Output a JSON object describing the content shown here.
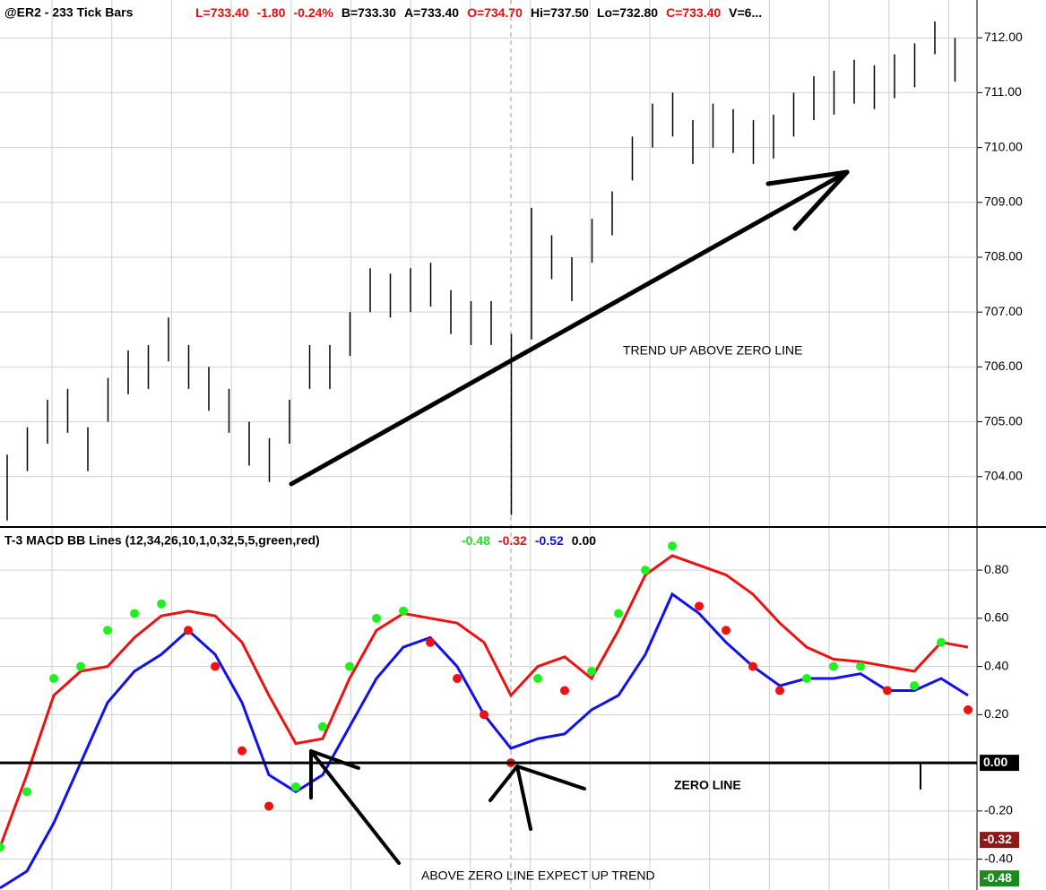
{
  "chart_data": [
    {
      "type": "range_bars",
      "title": "@ER2 - 233 Tick Bars",
      "quote": [
        {
          "label": "L=733.40",
          "color": "#e01010"
        },
        {
          "label": "-1.80",
          "color": "#e01010"
        },
        {
          "label": "-0.24%",
          "color": "#e01010"
        },
        {
          "label": "B=733.30",
          "color": "#000000"
        },
        {
          "label": "A=733.40",
          "color": "#000000"
        },
        {
          "label": "O=734.70",
          "color": "#e01010"
        },
        {
          "label": "Hi=737.50",
          "color": "#000000"
        },
        {
          "label": "Lo=732.80",
          "color": "#000000"
        },
        {
          "label": "C=733.40",
          "color": "#e01010"
        },
        {
          "label": "V=6...",
          "color": "#000000"
        }
      ],
      "annotation": "TREND UP ABOVE ZERO LINE",
      "color": "#000000",
      "series": [
        {
          "name": "High",
          "values": [
            704.4,
            704.9,
            705.4,
            705.6,
            704.9,
            705.8,
            706.3,
            706.4,
            706.9,
            706.4,
            706.0,
            705.6,
            705.0,
            704.7,
            705.4,
            706.4,
            706.4,
            707.0,
            707.8,
            707.7,
            707.8,
            707.9,
            707.4,
            707.2,
            707.2,
            706.6,
            708.9,
            708.4,
            708.0,
            708.7,
            709.2,
            710.2,
            710.8,
            711.0,
            710.5,
            710.8,
            710.7,
            710.5,
            710.6,
            711.0,
            711.3,
            711.4,
            711.6,
            711.5,
            711.7,
            711.9,
            712.3,
            712.0
          ]
        },
        {
          "name": "Low",
          "values": [
            703.2,
            704.1,
            704.6,
            704.8,
            704.1,
            705.0,
            705.5,
            705.6,
            706.1,
            705.6,
            705.2,
            704.8,
            704.2,
            703.9,
            704.6,
            705.6,
            705.6,
            706.2,
            707.0,
            706.9,
            707.0,
            707.1,
            706.6,
            706.4,
            706.4,
            703.3,
            706.5,
            707.6,
            707.2,
            707.9,
            708.4,
            709.4,
            710.0,
            710.2,
            709.7,
            710.0,
            709.9,
            709.7,
            709.8,
            710.2,
            710.5,
            710.6,
            710.8,
            710.7,
            710.9,
            711.1,
            711.7,
            711.2
          ]
        }
      ],
      "ylim": [
        703.13,
        712.69
      ],
      "yticks": [
        {
          "value": 704,
          "label": "704.00"
        },
        {
          "value": 705,
          "label": "705.00"
        },
        {
          "value": 706,
          "label": "706.00"
        },
        {
          "value": 707,
          "label": "707.00"
        },
        {
          "value": 708,
          "label": "708.00"
        },
        {
          "value": 709,
          "label": "709.00"
        },
        {
          "value": 710,
          "label": "710.00"
        },
        {
          "value": 711,
          "label": "711.00"
        },
        {
          "value": 712,
          "label": "712.00"
        }
      ],
      "grid": true
    },
    {
      "type": "macd",
      "title": "T-3 MACD BB Lines  (12,34,26,10,1,0,32,5,5,green,red)",
      "readouts": [
        {
          "label": "-0.48",
          "color": "#22dd22"
        },
        {
          "label": "-0.32",
          "color": "#e01010"
        },
        {
          "label": "-0.52",
          "color": "#1010e0"
        },
        {
          "label": "0.00",
          "color": "#000000"
        }
      ],
      "annotations": [
        "ZERO LINE",
        "ABOVE ZERO LINE EXPECT UP  TREND"
      ],
      "series": [
        {
          "name": "Signal",
          "color": "#ee1111",
          "values": [
            -0.35,
            -0.05,
            0.28,
            0.38,
            0.4,
            0.52,
            0.61,
            0.63,
            0.61,
            0.5,
            0.28,
            0.08,
            0.1,
            0.35,
            0.55,
            0.62,
            0.6,
            0.58,
            0.5,
            0.28,
            0.4,
            0.44,
            0.35,
            0.55,
            0.78,
            0.86,
            0.82,
            0.78,
            0.7,
            0.58,
            0.48,
            0.43,
            0.42,
            0.4,
            0.38,
            0.5,
            0.48
          ]
        },
        {
          "name": "MACD",
          "color": "#1111ee",
          "values": [
            -0.52,
            -0.45,
            -0.25,
            0.0,
            0.25,
            0.38,
            0.45,
            0.55,
            0.45,
            0.25,
            -0.05,
            -0.12,
            -0.05,
            0.15,
            0.35,
            0.48,
            0.52,
            0.4,
            0.2,
            0.06,
            0.1,
            0.12,
            0.22,
            0.28,
            0.45,
            0.7,
            0.62,
            0.5,
            0.4,
            0.32,
            0.35,
            0.35,
            0.37,
            0.3,
            0.3,
            0.35,
            0.28
          ]
        },
        {
          "name": "BB Dots",
          "values": [
            -0.35,
            -0.12,
            0.35,
            0.4,
            0.55,
            0.62,
            0.66,
            0.55,
            0.4,
            0.05,
            -0.18,
            -0.1,
            0.15,
            0.4,
            0.6,
            0.63,
            0.5,
            0.35,
            0.2,
            0.0,
            0.35,
            0.3,
            0.38,
            0.62,
            0.8,
            0.9,
            0.65,
            0.55,
            0.4,
            0.3,
            0.35,
            0.4,
            0.4,
            0.3,
            0.32,
            0.5,
            0.22
          ],
          "point_colors": [
            "#22ee22",
            "#22ee22",
            "#22ee22",
            "#22ee22",
            "#22ee22",
            "#22ee22",
            "#22ee22",
            "#ee1111",
            "#ee1111",
            "#ee1111",
            "#ee1111",
            "#22ee22",
            "#22ee22",
            "#22ee22",
            "#22ee22",
            "#22ee22",
            "#ee1111",
            "#ee1111",
            "#ee1111",
            "#ee1111",
            "#22ee22",
            "#ee1111",
            "#22ee22",
            "#22ee22",
            "#22ee22",
            "#22ee22",
            "#ee1111",
            "#ee1111",
            "#ee1111",
            "#ee1111",
            "#22ee22",
            "#22ee22",
            "#22ee22",
            "#ee1111",
            "#22ee22",
            "#22ee22",
            "#ee1111"
          ]
        }
      ],
      "ylim": [
        -0.528,
        0.964
      ],
      "yticks": [
        {
          "value": 0.8,
          "label": "0.80"
        },
        {
          "value": 0.6,
          "label": "0.60"
        },
        {
          "value": 0.4,
          "label": "0.40"
        },
        {
          "value": 0.2,
          "label": "0.20"
        },
        {
          "value": -0.2,
          "label": "-0.20"
        },
        {
          "value": -0.4,
          "label": "-0.40"
        }
      ],
      "tags": [
        {
          "value": 0,
          "label": "0.00",
          "color": "#000000"
        },
        {
          "value": -0.32,
          "label": "-0.32",
          "color": "#8b1a1a"
        },
        {
          "value": -0.48,
          "label": "-0.48",
          "color": "#1f8a1f"
        }
      ],
      "grid": true
    }
  ]
}
